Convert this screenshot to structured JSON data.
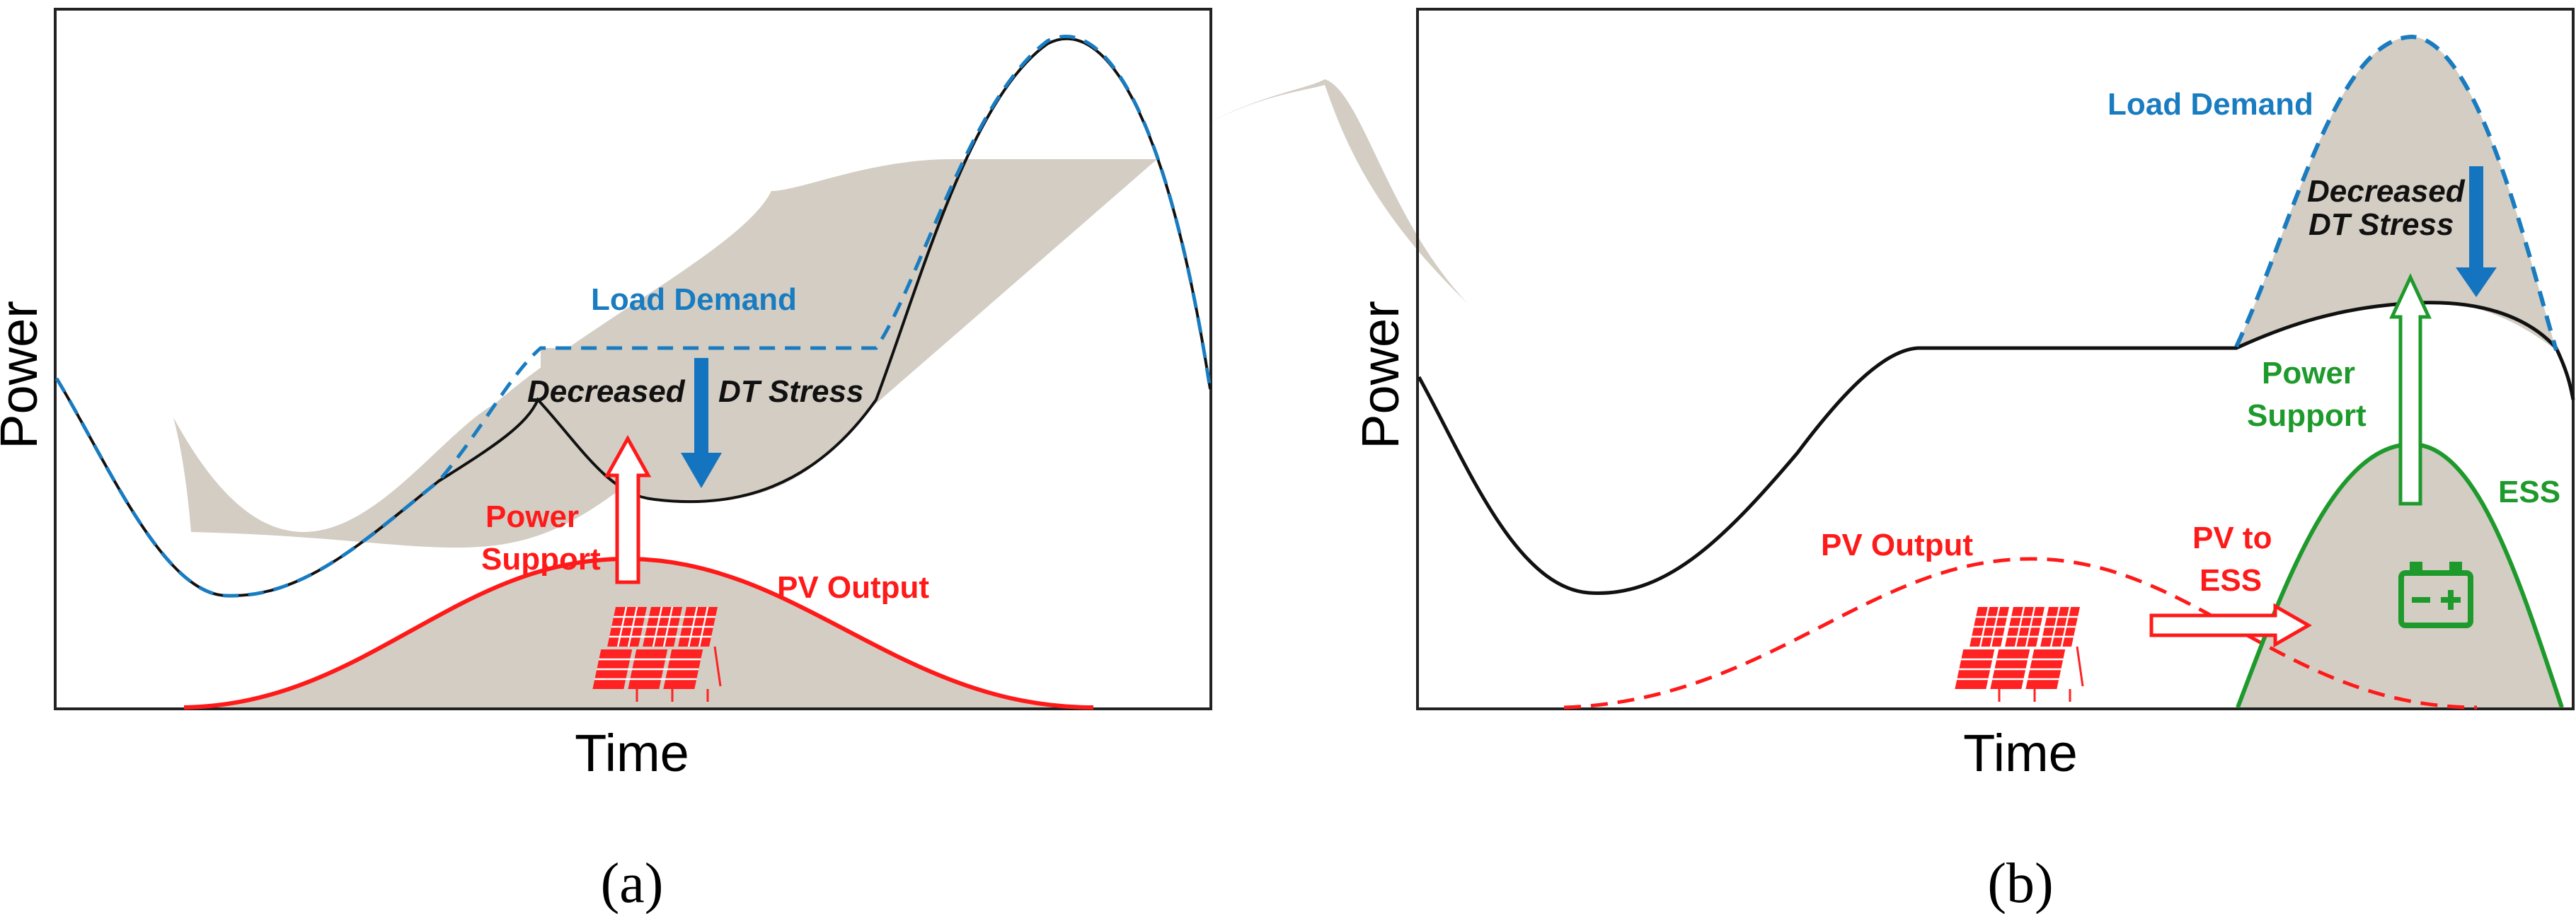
{
  "colors": {
    "load": "#1a7cc0",
    "pv": "#ff1a1a",
    "ess": "#1e9a2c",
    "shade": "#d3cdc3",
    "frame": "#222222",
    "stress_arrow": "#1574c0"
  },
  "panel_a": {
    "ylabel": "Power",
    "xlabel": "Time",
    "caption": "(a)",
    "load_demand_label": "Load Demand",
    "decreased_label": "Decreased",
    "dt_stress_label": "DT Stress",
    "power_support_line1": "Power",
    "power_support_line2": "Support",
    "pv_output_label": "PV Output",
    "solar_icon": "solar-panel-icon"
  },
  "panel_b": {
    "ylabel": "Power",
    "xlabel": "Time",
    "caption": "(b)",
    "load_demand_label": "Load Demand",
    "decreased_line1": "Decreased",
    "decreased_line2": "DT Stress",
    "power_support_line1": "Power",
    "power_support_line2": "Support",
    "pv_output_label": "PV Output",
    "pv_to_ess_line1": "PV to",
    "pv_to_ess_line2": "ESS",
    "ess_label": "ESS",
    "solar_icon": "solar-panel-icon",
    "battery_icon": "battery-icon"
  }
}
